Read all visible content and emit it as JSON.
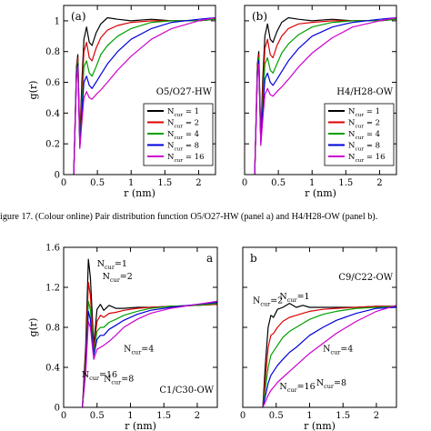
{
  "caption": "igure 17. (Colour online) Pair distribution function O5/O27-HW (panel a) and H4/H28-OW (panel b).",
  "series_colors": [
    "#000000",
    "#dd0000",
    "#00a000",
    "#0000dd",
    "#cc00cc"
  ],
  "chart_data": [
    {
      "type": "line",
      "panel_label": "(a)",
      "series_label": "O5/O27-HW",
      "xlabel": "r (nm)",
      "ylabel": "g(r)",
      "xlim": [
        0,
        2.25
      ],
      "ylim": [
        0,
        1.1
      ],
      "xticks": [
        0,
        0.5,
        1,
        1.5,
        2
      ],
      "xtick_labels": [
        "0",
        "0.5",
        "1",
        "1.5",
        "2"
      ],
      "yticks": [
        0,
        0.2,
        0.4,
        0.6,
        0.8,
        1
      ],
      "ytick_labels": [
        "0",
        "0.2",
        "0.4",
        "0.6",
        "0.8",
        "1"
      ],
      "legend_position": "center-right",
      "legend": [
        {
          "base": "N",
          "sub": "cur",
          "value": " = 1"
        },
        {
          "base": "N",
          "sub": "cur",
          "value": " = 2"
        },
        {
          "base": "N",
          "sub": "cur",
          "value": " = 4"
        },
        {
          "base": "N",
          "sub": "cur",
          "value": " = 8"
        },
        {
          "base": "N",
          "sub": "cur",
          "value": " = 16"
        }
      ],
      "x": [
        0.15,
        0.19,
        0.21,
        0.24,
        0.27,
        0.3,
        0.34,
        0.38,
        0.42,
        0.48,
        0.55,
        0.65,
        0.8,
        1.0,
        1.3,
        1.6,
        2.0,
        2.25
      ],
      "series": [
        {
          "values": [
            0.0,
            0.7,
            0.78,
            0.22,
            0.6,
            0.88,
            0.96,
            0.86,
            0.84,
            0.92,
            0.98,
            1.02,
            1.01,
            1.0,
            1.01,
            1.0,
            1.0,
            1.01
          ]
        },
        {
          "values": [
            0.0,
            0.68,
            0.76,
            0.2,
            0.52,
            0.8,
            0.86,
            0.76,
            0.74,
            0.82,
            0.89,
            0.94,
            0.97,
            0.99,
            1.0,
            1.0,
            1.0,
            1.01
          ]
        },
        {
          "values": [
            0.0,
            0.66,
            0.74,
            0.19,
            0.45,
            0.7,
            0.74,
            0.66,
            0.64,
            0.7,
            0.78,
            0.84,
            0.9,
            0.95,
            0.99,
            1.0,
            1.0,
            1.01
          ]
        },
        {
          "values": [
            0.0,
            0.64,
            0.72,
            0.18,
            0.4,
            0.6,
            0.64,
            0.58,
            0.56,
            0.6,
            0.65,
            0.72,
            0.8,
            0.88,
            0.95,
            0.99,
            1.01,
            1.02
          ]
        },
        {
          "values": [
            0.0,
            0.62,
            0.7,
            0.17,
            0.34,
            0.5,
            0.54,
            0.5,
            0.49,
            0.52,
            0.55,
            0.6,
            0.68,
            0.77,
            0.88,
            0.95,
            1.0,
            1.02
          ]
        }
      ]
    },
    {
      "type": "line",
      "panel_label": "(b)",
      "series_label": "H4/H28-OW",
      "xlabel": "r (nm)",
      "ylabel": "",
      "xlim": [
        0,
        2.25
      ],
      "ylim": [
        0,
        1.1
      ],
      "xticks": [
        0,
        0.5,
        1,
        1.5,
        2
      ],
      "xtick_labels": [
        "0",
        "0.5",
        "1",
        "1.5",
        "2"
      ],
      "yticks": [
        0,
        0.2,
        0.4,
        0.6,
        0.8,
        1
      ],
      "ytick_labels": [
        "",
        "",
        "",
        "",
        "",
        ""
      ],
      "legend_position": "center-right",
      "legend": [
        {
          "base": "N",
          "sub": "cur",
          "value": " = 1"
        },
        {
          "base": "N",
          "sub": "cur",
          "value": " = 2"
        },
        {
          "base": "N",
          "sub": "cur",
          "value": " = 4"
        },
        {
          "base": "N",
          "sub": "cur",
          "value": " = 8"
        },
        {
          "base": "N",
          "sub": "cur",
          "value": " = 16"
        }
      ],
      "x": [
        0.15,
        0.19,
        0.21,
        0.24,
        0.27,
        0.3,
        0.34,
        0.38,
        0.42,
        0.48,
        0.55,
        0.65,
        0.8,
        1.0,
        1.3,
        1.6,
        2.0,
        2.25
      ],
      "series": [
        {
          "values": [
            0.0,
            0.72,
            0.8,
            0.24,
            0.62,
            0.9,
            0.98,
            0.88,
            0.86,
            0.93,
            0.99,
            1.02,
            1.01,
            1.0,
            1.01,
            1.0,
            1.0,
            1.01
          ]
        },
        {
          "values": [
            0.0,
            0.7,
            0.78,
            0.22,
            0.54,
            0.82,
            0.88,
            0.78,
            0.76,
            0.84,
            0.9,
            0.95,
            0.98,
            0.99,
            1.0,
            1.0,
            1.0,
            1.01
          ]
        },
        {
          "values": [
            0.0,
            0.68,
            0.76,
            0.21,
            0.47,
            0.72,
            0.76,
            0.68,
            0.66,
            0.72,
            0.79,
            0.85,
            0.91,
            0.96,
            0.99,
            1.0,
            1.0,
            1.01
          ]
        },
        {
          "values": [
            0.0,
            0.66,
            0.74,
            0.2,
            0.42,
            0.62,
            0.66,
            0.6,
            0.58,
            0.62,
            0.67,
            0.74,
            0.82,
            0.9,
            0.96,
            0.99,
            1.01,
            1.02
          ]
        },
        {
          "values": [
            0.0,
            0.64,
            0.72,
            0.19,
            0.36,
            0.52,
            0.56,
            0.52,
            0.51,
            0.54,
            0.57,
            0.62,
            0.7,
            0.79,
            0.89,
            0.96,
            1.0,
            1.02
          ]
        }
      ]
    },
    {
      "type": "line",
      "panel_label": "a",
      "series_label": "C1/C30-OW",
      "xlabel": "r (nm)",
      "ylabel": "g(r)",
      "xlim": [
        0,
        2.3
      ],
      "ylim": [
        0,
        1.6
      ],
      "xticks": [
        0,
        0.5,
        1,
        1.5,
        2
      ],
      "xtick_labels": [
        "0",
        "0.5",
        "1",
        "1.5",
        "2"
      ],
      "yticks": [
        0,
        0.4,
        0.8,
        1.2,
        1.6
      ],
      "ytick_labels": [
        "0",
        "0.4",
        "0.8",
        "1.2",
        "1.6"
      ],
      "curve_labels": [
        {
          "base": "N",
          "sub": "cur",
          "value": "=1",
          "at": [
            0.5,
            1.41
          ]
        },
        {
          "base": "N",
          "sub": "cur",
          "value": "=2",
          "at": [
            0.58,
            1.28
          ]
        },
        {
          "base": "N",
          "sub": "cur",
          "value": "=4",
          "at": [
            0.9,
            0.56
          ]
        },
        {
          "base": "N",
          "sub": "cur",
          "value": "=16",
          "at": [
            0.27,
            0.3
          ]
        },
        {
          "base": "N",
          "sub": "cur",
          "value": "=8",
          "at": [
            0.6,
            0.26
          ]
        }
      ],
      "x": [
        0.28,
        0.33,
        0.37,
        0.4,
        0.45,
        0.5,
        0.55,
        0.6,
        0.68,
        0.78,
        0.9,
        1.1,
        1.3,
        1.6,
        2.0,
        2.3
      ],
      "series": [
        {
          "values": [
            0.0,
            0.6,
            1.48,
            1.3,
            0.62,
            0.98,
            1.03,
            0.97,
            1.02,
            0.99,
            0.99,
            1.0,
            1.0,
            1.01,
            1.02,
            1.03
          ]
        },
        {
          "values": [
            0.0,
            0.5,
            1.25,
            1.12,
            0.58,
            0.86,
            0.92,
            0.9,
            0.94,
            0.95,
            0.97,
            0.99,
            1.0,
            1.01,
            1.02,
            1.03
          ]
        },
        {
          "values": [
            0.0,
            0.42,
            1.06,
            0.98,
            0.55,
            0.76,
            0.8,
            0.8,
            0.85,
            0.88,
            0.92,
            0.96,
            0.99,
            1.01,
            1.02,
            1.04
          ]
        },
        {
          "values": [
            0.0,
            0.38,
            0.96,
            0.88,
            0.52,
            0.68,
            0.72,
            0.72,
            0.78,
            0.82,
            0.87,
            0.93,
            0.97,
            1.0,
            1.03,
            1.05
          ]
        },
        {
          "values": [
            0.0,
            0.34,
            0.86,
            0.8,
            0.48,
            0.58,
            0.6,
            0.62,
            0.66,
            0.72,
            0.8,
            0.88,
            0.94,
            0.99,
            1.03,
            1.06
          ]
        }
      ]
    },
    {
      "type": "line",
      "panel_label": "b",
      "series_label": "C9/C22-OW",
      "xlabel": "r (nm)",
      "ylabel": "",
      "xlim": [
        0,
        2.3
      ],
      "ylim": [
        0,
        1.6
      ],
      "xticks": [
        0,
        0.5,
        1,
        1.5,
        2
      ],
      "xtick_labels": [
        "0",
        "0.5",
        "1",
        "1.5",
        "2"
      ],
      "yticks": [
        0,
        0.4,
        0.8,
        1.2,
        1.6
      ],
      "ytick_labels": [
        "",
        "",
        "",
        "",
        ""
      ],
      "curve_labels": [
        {
          "base": "N",
          "sub": "cur",
          "value": "=1",
          "at": [
            0.55,
            1.08
          ]
        },
        {
          "base": "N",
          "sub": "cur",
          "value": "=2",
          "at": [
            0.15,
            1.04
          ]
        },
        {
          "base": "N",
          "sub": "cur",
          "value": "=4",
          "at": [
            1.2,
            0.56
          ]
        },
        {
          "base": "N",
          "sub": "cur",
          "value": "=16",
          "at": [
            0.55,
            0.18
          ]
        },
        {
          "base": "N",
          "sub": "cur",
          "value": "=8",
          "at": [
            1.1,
            0.22
          ]
        }
      ],
      "x": [
        0.3,
        0.34,
        0.38,
        0.42,
        0.46,
        0.52,
        0.6,
        0.7,
        0.8,
        0.9,
        1.0,
        1.2,
        1.4,
        1.7,
        2.0,
        2.3
      ],
      "series": [
        {
          "values": [
            0.0,
            0.45,
            0.8,
            0.92,
            0.9,
            0.98,
            1.0,
            1.04,
            1.0,
            1.02,
            1.0,
            1.0,
            1.0,
            1.0,
            1.01,
            1.01
          ]
        },
        {
          "values": [
            0.0,
            0.3,
            0.6,
            0.72,
            0.74,
            0.8,
            0.86,
            0.9,
            0.92,
            0.94,
            0.96,
            0.98,
            0.99,
            1.0,
            1.01,
            1.01
          ]
        },
        {
          "values": [
            0.0,
            0.2,
            0.4,
            0.52,
            0.56,
            0.62,
            0.7,
            0.76,
            0.8,
            0.84,
            0.88,
            0.93,
            0.96,
            0.99,
            1.0,
            1.01
          ]
        },
        {
          "values": [
            0.0,
            0.12,
            0.24,
            0.32,
            0.36,
            0.42,
            0.48,
            0.55,
            0.6,
            0.66,
            0.72,
            0.8,
            0.87,
            0.94,
            0.99,
            1.0
          ]
        },
        {
          "values": [
            0.0,
            0.06,
            0.12,
            0.17,
            0.2,
            0.25,
            0.3,
            0.36,
            0.42,
            0.48,
            0.54,
            0.64,
            0.74,
            0.86,
            0.96,
            1.02
          ]
        }
      ]
    }
  ]
}
